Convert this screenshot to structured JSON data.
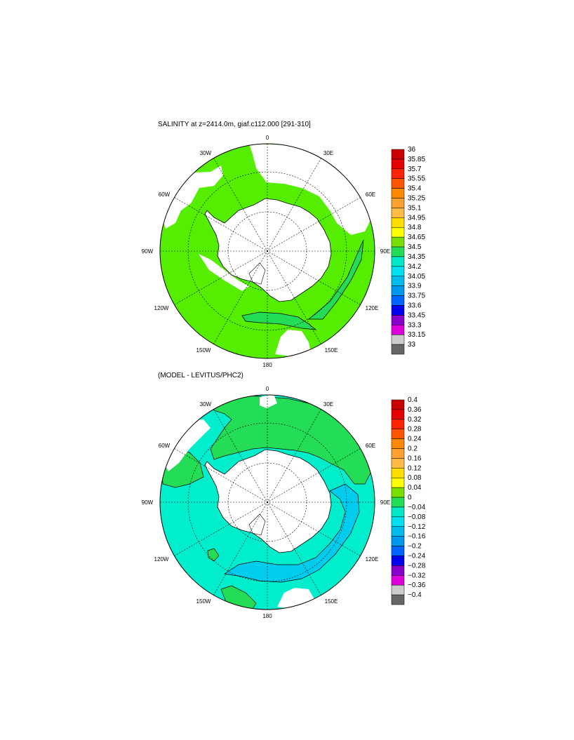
{
  "panels": [
    {
      "title": "SALINITY at z=2414.0m, giaf.c112.000 [291-310]",
      "lon_labels": [
        "0",
        "30E",
        "60E",
        "90E",
        "120E",
        "150E",
        "180",
        "150W",
        "120W",
        "90W",
        "60W",
        "30W"
      ],
      "colorbar": {
        "labels": [
          "36",
          "35.85",
          "35.7",
          "35.55",
          "35.4",
          "35.25",
          "35.1",
          "34.95",
          "34.8",
          "34.65",
          "34.5",
          "34.35",
          "34.2",
          "34.05",
          "33.9",
          "33.75",
          "33.6",
          "33.45",
          "33.3",
          "33.15",
          "33"
        ],
        "colors": [
          "#cc0000",
          "#e60000",
          "#ff2200",
          "#ff5500",
          "#ff8800",
          "#ffa030",
          "#ffbb44",
          "#ffdd00",
          "#ffff00",
          "#77e000",
          "#22dd55",
          "#00e8c8",
          "#00e0f0",
          "#00bbee",
          "#0099ee",
          "#0066ff",
          "#0000ee",
          "#8800cc",
          "#dd00dd",
          "#cccccc",
          "#666666"
        ]
      },
      "ocean_color": "#55ee00"
    },
    {
      "title": "(MODEL - LEVITUS/PHC2)",
      "lon_labels": [
        "0",
        "30E",
        "60E",
        "90E",
        "120E",
        "150E",
        "180",
        "150W",
        "120W",
        "90W",
        "60W",
        "30W"
      ],
      "colorbar": {
        "labels": [
          "0.4",
          "0.36",
          "0.32",
          "0.28",
          "0.24",
          "0.2",
          "0.16",
          "0.12",
          "0.08",
          "0.04",
          "0",
          "−0.04",
          "−0.08",
          "−0.12",
          "−0.16",
          "−0.2",
          "−0.24",
          "−0.28",
          "−0.32",
          "−0.36",
          "−0.4"
        ],
        "colors": [
          "#cc0000",
          "#e60000",
          "#ff2200",
          "#ff5500",
          "#ff8800",
          "#ffa030",
          "#ffbb44",
          "#ffdd00",
          "#ffff00",
          "#77e000",
          "#22dd55",
          "#00e8c8",
          "#00e0f0",
          "#00bbee",
          "#0099ee",
          "#0066ff",
          "#0000ee",
          "#8800cc",
          "#dd00dd",
          "#cccccc",
          "#666666"
        ]
      },
      "ocean_color": "#00eecc",
      "anomaly_color": "#22dd55",
      "deep_color": "#00ccee"
    }
  ]
}
